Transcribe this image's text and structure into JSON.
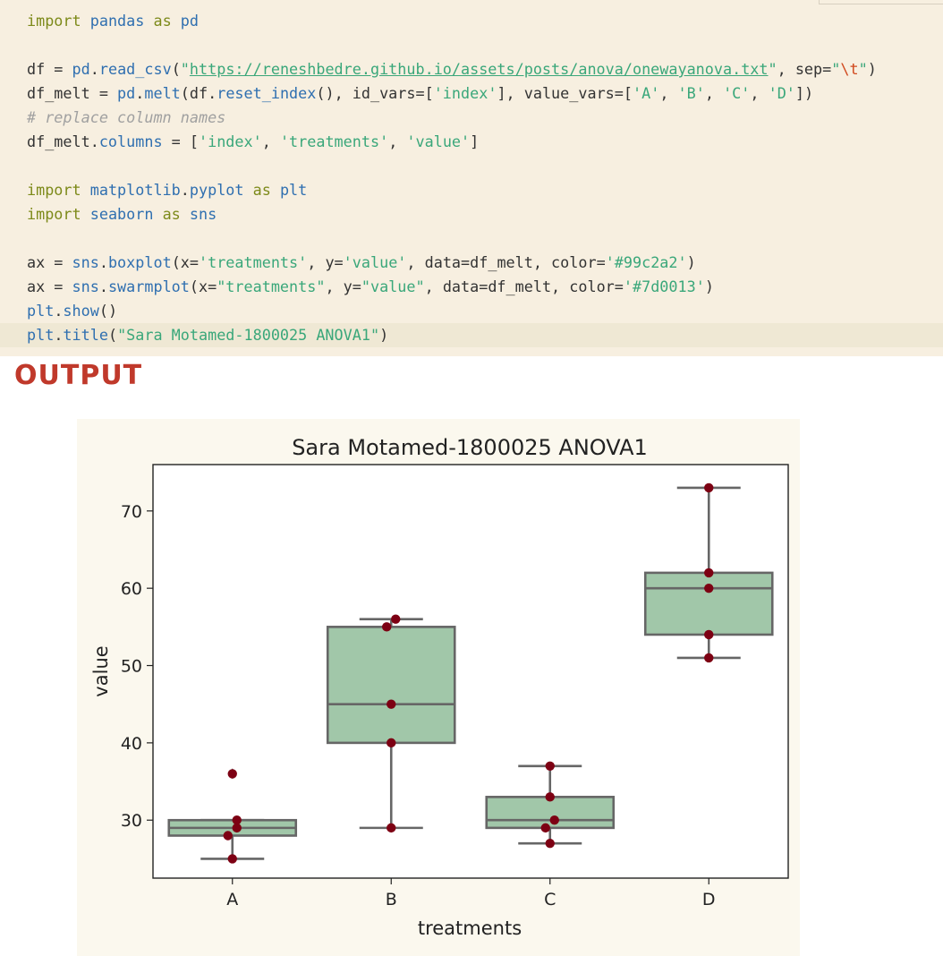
{
  "code_cell": {
    "lines": [
      "import pandas as pd",
      "",
      "df = pd.read_csv(\"https://reneshbedre.github.io/assets/posts/anova/onewayanova.txt\", sep=\"\\t\")",
      "df_melt = pd.melt(df.reset_index(), id_vars=['index'], value_vars=['A', 'B', 'C', 'D'])",
      "# replace column names",
      "df_melt.columns = ['index', 'treatments', 'value']",
      "",
      "import matplotlib.pyplot as plt",
      "import seaborn as sns",
      "",
      "ax = sns.boxplot(x='treatments', y='value', data=df_melt, color='#99c2a2')",
      "ax = sns.swarmplot(x=\"treatments\", y=\"value\", data=df_melt, color='#7d0013')",
      "plt.show()",
      "plt.title(\"Sara Motamed-1800025 ANOVA1\")"
    ]
  },
  "output_heading": "OUTPUT",
  "colors": {
    "box_fill": "#99c2a2",
    "point": "#7d0013",
    "heading": "#c0392b",
    "code_bg": "#f7efe0"
  },
  "chart_data": {
    "type": "box",
    "title": "Sara Motamed-1800025 ANOVA1",
    "xlabel": "treatments",
    "ylabel": "value",
    "categories": [
      "A",
      "B",
      "C",
      "D"
    ],
    "ylim": [
      22.5,
      76
    ],
    "yticks": [
      30,
      40,
      50,
      60,
      70
    ],
    "boxes": [
      {
        "category": "A",
        "whislo": 25,
        "q1": 28,
        "med": 29,
        "q3": 30,
        "whishi": 30,
        "fliers": [
          36
        ]
      },
      {
        "category": "B",
        "whislo": 29,
        "q1": 40,
        "med": 45,
        "q3": 55,
        "whishi": 56,
        "fliers": []
      },
      {
        "category": "C",
        "whislo": 27,
        "q1": 29,
        "med": 30,
        "q3": 33,
        "whishi": 37,
        "fliers": []
      },
      {
        "category": "D",
        "whislo": 51,
        "q1": 54,
        "med": 60,
        "q3": 62,
        "whishi": 73,
        "fliers": []
      }
    ],
    "points": [
      {
        "category": "A",
        "values": [
          25,
          29,
          28,
          36,
          30
        ]
      },
      {
        "category": "B",
        "values": [
          45,
          56,
          55,
          29,
          40
        ]
      },
      {
        "category": "C",
        "values": [
          30,
          29,
          33,
          37,
          27
        ]
      },
      {
        "category": "D",
        "values": [
          54,
          60,
          51,
          62,
          73
        ]
      }
    ],
    "grid": false,
    "legend": "none"
  }
}
